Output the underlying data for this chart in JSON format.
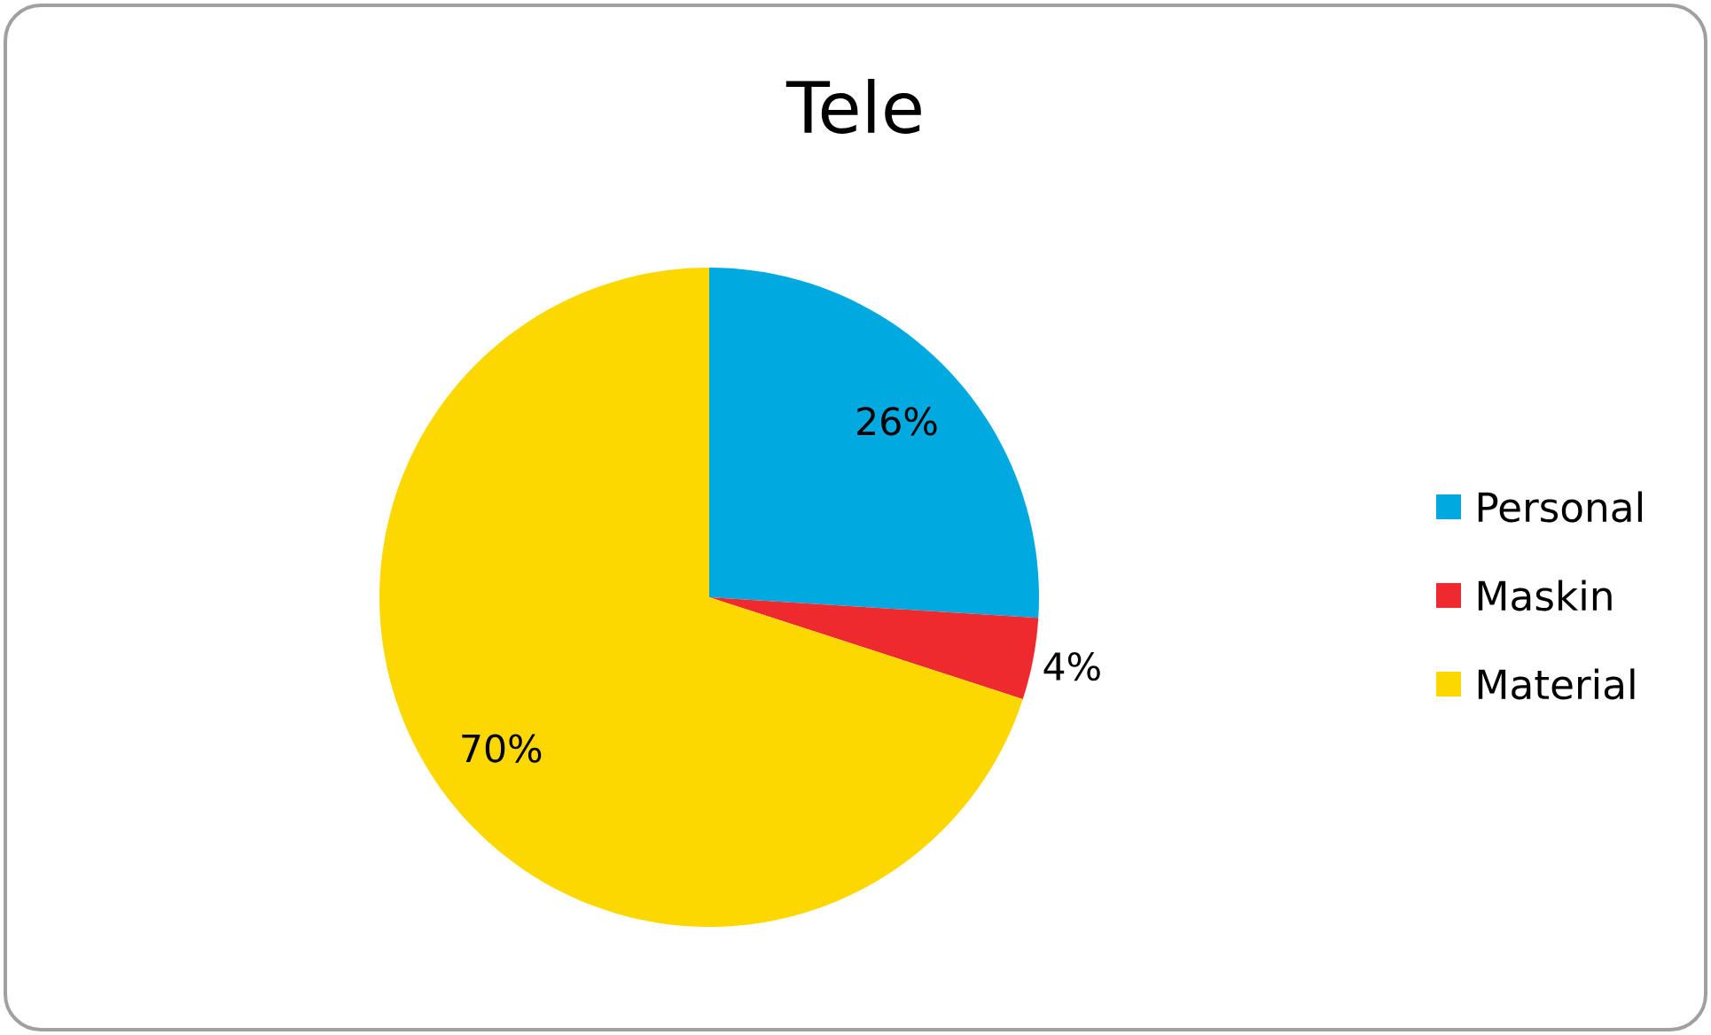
{
  "chart_data": {
    "type": "pie",
    "title": "Tele",
    "categories": [
      "Personal",
      "Maskin",
      "Material"
    ],
    "values": [
      26,
      4,
      70
    ],
    "colors": [
      "#00a9e0",
      "#ee2a2e",
      "#fcd700"
    ],
    "value_labels": [
      "26%",
      "4%",
      "70%"
    ],
    "legend": "right"
  }
}
